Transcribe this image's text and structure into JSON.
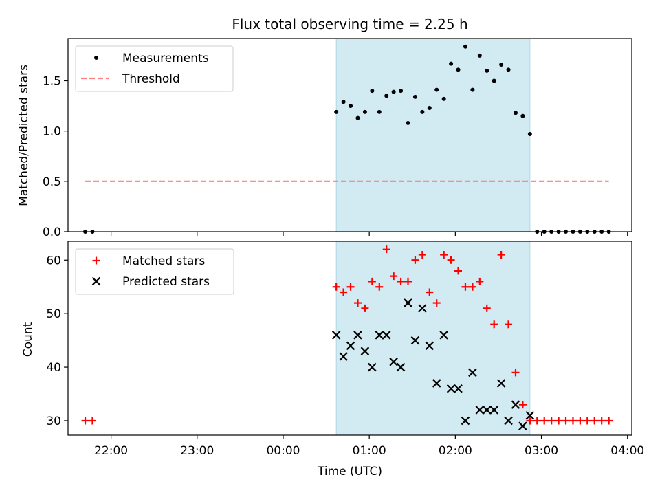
{
  "chart_data": [
    {
      "type": "scatter",
      "title": "Flux total observing time = 2.25 h",
      "xlabel": "",
      "ylabel": "Matched/Predicted stars",
      "ylim": [
        0.0,
        1.92
      ],
      "yticks": [
        0.0,
        0.5,
        1.0,
        1.5
      ],
      "ytick_labels": [
        "0.0",
        "0.5",
        "1.0",
        "1.5"
      ],
      "grid": false,
      "legend_position": "upper-left",
      "shaded_span": {
        "x0": "00:37",
        "x1": "02:52",
        "color": "#add8e6"
      },
      "series": [
        {
          "name": "Measurements",
          "marker": "dot",
          "color": "#000000",
          "x": [
            "21:42",
            "21:47",
            "00:37",
            "00:42",
            "00:47",
            "00:52",
            "00:57",
            "01:02",
            "01:07",
            "01:12",
            "01:17",
            "01:22",
            "01:27",
            "01:32",
            "01:37",
            "01:42",
            "01:47",
            "01:52",
            "01:57",
            "02:02",
            "02:07",
            "02:12",
            "02:17",
            "02:22",
            "02:27",
            "02:32",
            "02:37",
            "02:42",
            "02:47",
            "02:52",
            "02:57",
            "03:02",
            "03:07",
            "03:12",
            "03:17",
            "03:22",
            "03:27",
            "03:32",
            "03:37",
            "03:42",
            "03:47"
          ],
          "y": [
            0.0,
            0.0,
            1.19,
            1.29,
            1.25,
            1.13,
            1.19,
            1.4,
            1.19,
            1.35,
            1.39,
            1.4,
            1.08,
            1.34,
            1.19,
            1.23,
            1.41,
            1.32,
            1.67,
            1.61,
            1.84,
            1.41,
            1.75,
            1.6,
            1.5,
            1.66,
            1.61,
            1.18,
            1.15,
            0.97,
            0.0,
            0.0,
            0.0,
            0.0,
            0.0,
            0.0,
            0.0,
            0.0,
            0.0,
            0.0,
            0.0
          ]
        },
        {
          "name": "Threshold",
          "marker": "dashed-line",
          "color": "#ff7f7f",
          "x": [
            "21:42",
            "03:47"
          ],
          "y": [
            0.5,
            0.5
          ]
        }
      ]
    },
    {
      "type": "scatter",
      "title": "",
      "xlabel": "Time (UTC)",
      "ylabel": "Count",
      "ylim": [
        27.3,
        63.5
      ],
      "yticks": [
        30,
        40,
        50,
        60
      ],
      "ytick_labels": [
        "30",
        "40",
        "50",
        "60"
      ],
      "xlim": [
        "21:30",
        "04:03"
      ],
      "xticks": [
        "22:00",
        "23:00",
        "00:00",
        "01:00",
        "02:00",
        "03:00",
        "04:00"
      ],
      "xtick_labels": [
        "22:00",
        "23:00",
        "00:00",
        "01:00",
        "02:00",
        "03:00",
        "04:00"
      ],
      "grid": false,
      "legend_position": "upper-left",
      "shaded_span": {
        "x0": "00:37",
        "x1": "02:52",
        "color": "#add8e6"
      },
      "series": [
        {
          "name": "Matched stars",
          "marker": "plus",
          "color": "#ff0000",
          "x": [
            "21:42",
            "21:47",
            "00:37",
            "00:42",
            "00:47",
            "00:52",
            "00:57",
            "01:02",
            "01:07",
            "01:12",
            "01:17",
            "01:22",
            "01:27",
            "01:32",
            "01:37",
            "01:42",
            "01:47",
            "01:52",
            "01:57",
            "02:02",
            "02:07",
            "02:12",
            "02:17",
            "02:22",
            "02:27",
            "02:32",
            "02:37",
            "02:42",
            "02:47",
            "02:52",
            "02:57",
            "03:02",
            "03:07",
            "03:12",
            "03:17",
            "03:22",
            "03:27",
            "03:32",
            "03:37",
            "03:42",
            "03:47"
          ],
          "y": [
            30,
            30,
            55,
            54,
            55,
            52,
            51,
            56,
            55,
            62,
            57,
            56,
            56,
            60,
            61,
            54,
            52,
            61,
            60,
            58,
            55,
            55,
            56,
            51,
            48,
            61,
            48,
            39,
            33,
            30,
            30,
            30,
            30,
            30,
            30,
            30,
            30,
            30,
            30,
            30,
            30
          ]
        },
        {
          "name": "Predicted stars",
          "marker": "x",
          "color": "#000000",
          "x": [
            "00:37",
            "00:42",
            "00:47",
            "00:52",
            "00:57",
            "01:02",
            "01:07",
            "01:12",
            "01:17",
            "01:22",
            "01:27",
            "01:32",
            "01:37",
            "01:42",
            "01:47",
            "01:52",
            "01:57",
            "02:02",
            "02:07",
            "02:12",
            "02:17",
            "02:22",
            "02:27",
            "02:32",
            "02:37",
            "02:42",
            "02:47",
            "02:52"
          ],
          "y": [
            46,
            42,
            44,
            46,
            43,
            40,
            46,
            46,
            41,
            40,
            52,
            45,
            51,
            44,
            37,
            46,
            36,
            36,
            30,
            39,
            32,
            32,
            32,
            37,
            30,
            33,
            29,
            31
          ]
        }
      ]
    }
  ]
}
